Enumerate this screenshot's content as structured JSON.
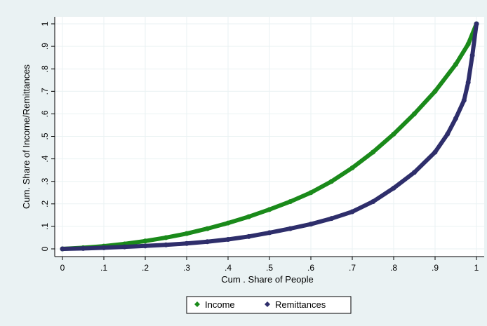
{
  "chart_data": {
    "type": "line",
    "title": "",
    "xlabel": "Cum . Share of People",
    "ylabel": "Cum. Share of Income/Remittances",
    "xlim": [
      0,
      1
    ],
    "ylim": [
      0,
      1
    ],
    "x_ticks": [
      0,
      0.1,
      0.2,
      0.3,
      0.4,
      0.5,
      0.6,
      0.7,
      0.8,
      0.9,
      1
    ],
    "x_tick_labels": [
      "0",
      ".1",
      ".2",
      ".3",
      ".4",
      ".5",
      ".6",
      ".7",
      ".8",
      ".9",
      "1"
    ],
    "y_ticks": [
      0,
      0.1,
      0.2,
      0.3,
      0.4,
      0.5,
      0.6,
      0.7,
      0.8,
      0.9,
      1
    ],
    "y_tick_labels": [
      "0",
      ".1",
      ".2",
      ".3",
      ".4",
      ".5",
      ".6",
      ".7",
      ".8",
      ".9",
      "1"
    ],
    "grid": true,
    "legend_position": "bottom",
    "colors": {
      "outer_background": "#EAF2F3",
      "plot_background": "#FFFFFF",
      "grid": "#EAF2F3",
      "axis": "#000000"
    },
    "series": [
      {
        "name": "Income",
        "color": "#1A8A1A",
        "x": [
          0,
          0.05,
          0.1,
          0.15,
          0.2,
          0.25,
          0.3,
          0.35,
          0.4,
          0.45,
          0.5,
          0.55,
          0.6,
          0.65,
          0.7,
          0.75,
          0.8,
          0.85,
          0.9,
          0.95,
          0.98,
          1
        ],
        "y": [
          0,
          0.005,
          0.012,
          0.022,
          0.035,
          0.05,
          0.068,
          0.09,
          0.115,
          0.143,
          0.175,
          0.21,
          0.25,
          0.3,
          0.36,
          0.43,
          0.51,
          0.6,
          0.7,
          0.82,
          0.91,
          1
        ]
      },
      {
        "name": "Remittances",
        "color": "#2E2E6B",
        "x": [
          0,
          0.05,
          0.1,
          0.15,
          0.2,
          0.25,
          0.3,
          0.35,
          0.4,
          0.45,
          0.5,
          0.55,
          0.6,
          0.65,
          0.7,
          0.75,
          0.8,
          0.85,
          0.9,
          0.93,
          0.95,
          0.97,
          0.98,
          0.99,
          1
        ],
        "y": [
          0,
          0.002,
          0.005,
          0.009,
          0.013,
          0.018,
          0.024,
          0.032,
          0.042,
          0.055,
          0.072,
          0.09,
          0.11,
          0.135,
          0.165,
          0.21,
          0.27,
          0.34,
          0.43,
          0.51,
          0.58,
          0.66,
          0.74,
          0.86,
          1
        ]
      }
    ]
  }
}
